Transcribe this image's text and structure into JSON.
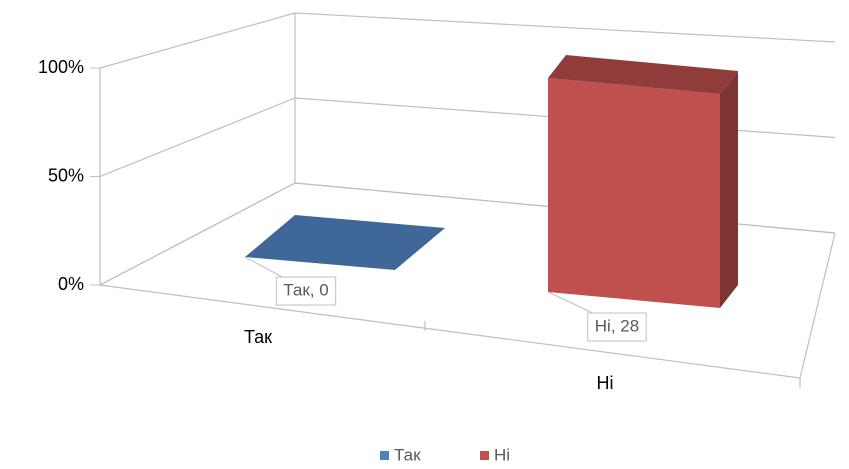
{
  "chart_data": {
    "type": "bar",
    "stacked": "percent",
    "categories": [
      "Так",
      "Ні"
    ],
    "series": [
      {
        "name": "Так",
        "color": "#4f81bd",
        "values": [
          0,
          null
        ],
        "value_labels": [
          "Так, 0",
          null
        ]
      },
      {
        "name": "Ні",
        "color": "#c0504d",
        "values": [
          null,
          28
        ],
        "value_labels": [
          null,
          "Ні, 28"
        ]
      }
    ],
    "ylim": [
      0,
      100
    ],
    "yticks": [
      {
        "value": 0,
        "label": "0%"
      },
      {
        "value": 50,
        "label": "50%"
      },
      {
        "value": 100,
        "label": "100%"
      }
    ],
    "grid": true,
    "legend": "bottom"
  }
}
